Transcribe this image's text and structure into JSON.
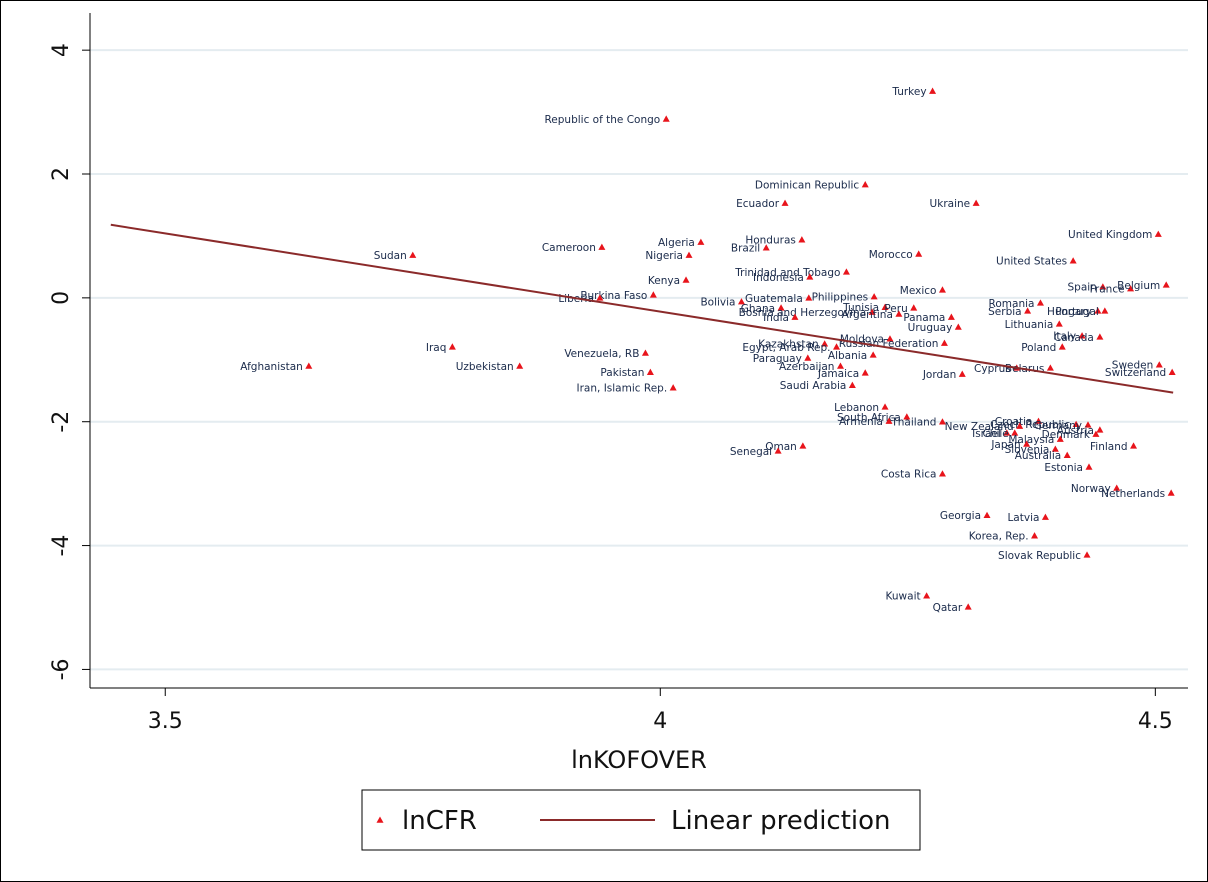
{
  "chart_data": {
    "type": "scatter",
    "x_label": "lnKOFOVER",
    "xlim": [
      3.424,
      4.533
    ],
    "xticks": [
      3.5,
      4,
      4.5
    ],
    "ylim": [
      -6.3,
      4.6
    ],
    "yticks": [
      -6,
      -4,
      -2,
      0,
      2,
      4
    ],
    "grid": true,
    "legend": "bottom",
    "series": [
      {
        "name": "lnCFR",
        "color": "#e8141b",
        "point_labels": [
          "Turkey",
          "Republic of the Congo",
          "Dominican Republic",
          "Ecuador",
          "Ukraine",
          "United Kingdom",
          "Sudan",
          "Cameroon",
          "Algeria",
          "Honduras",
          "Brazil",
          "Nigeria",
          "Morocco",
          "United States",
          "Kenya",
          "Trinidad and Tobago",
          "Indonesia",
          "Spain",
          "France",
          "Belgium",
          "Mexico",
          "Romania",
          "Burkina Faso",
          "Liberia",
          "Bolivia",
          "Guatemala",
          "Philippines",
          "Tunisia",
          "Peru",
          "Ghana",
          "Bosnia and Herzegovina",
          "India",
          "Argentina",
          "Panama",
          "Uruguay",
          "Serbia",
          "Hungary",
          "Portugal",
          "Lithuania",
          "Italy",
          "Canada",
          "Poland",
          "Moldova",
          "Kazakhstan",
          "Egypt, Arab Rep.",
          "Russian Federation",
          "Albania",
          "Venezuela, RB",
          "Iraq",
          "Paraguay",
          "Azerbaijan",
          "Afghanistan",
          "Uzbekistan",
          "Pakistan",
          "Jamaica",
          "Jordan",
          "Cyprus",
          "Belarus",
          "Sweden",
          "Switzerland",
          "Saudi Arabia",
          "Iran, Islamic Rep.",
          "Croatia",
          "Czech Republic",
          "Germany",
          "Denmark",
          "Austria",
          "Israel",
          "Chile",
          "Lebanon",
          "South Africa",
          "Armenia",
          "Thailand",
          "New Zealand",
          "Malaysia",
          "Japan",
          "Slovenia",
          "Australia",
          "Finland",
          "Oman",
          "Senegal",
          "Estonia",
          "Costa Rica",
          "Norway",
          "Netherlands",
          "Georgia",
          "Latvia",
          "Korea, Rep.",
          "Slovak Republic",
          "Kuwait",
          "Qatar"
        ],
        "x": [
          4.275,
          4.006,
          4.207,
          4.126,
          4.319,
          4.503,
          3.75,
          3.941,
          4.041,
          4.143,
          4.107,
          4.029,
          4.261,
          4.417,
          4.026,
          4.188,
          4.151,
          4.447,
          4.475,
          4.511,
          4.285,
          4.384,
          3.993,
          3.939,
          4.082,
          4.15,
          4.216,
          4.227,
          4.256,
          4.122,
          4.214,
          4.136,
          4.241,
          4.294,
          4.301,
          4.371,
          4.442,
          4.449,
          4.403,
          4.426,
          4.444,
          4.406,
          4.232,
          4.166,
          4.178,
          4.287,
          4.215,
          3.985,
          3.79,
          4.149,
          4.182,
          3.645,
          3.858,
          3.99,
          4.207,
          4.305,
          4.36,
          4.394,
          4.504,
          4.517,
          4.194,
          4.013,
          4.382,
          4.42,
          4.432,
          4.44,
          4.444,
          4.35,
          4.358,
          4.227,
          4.249,
          4.231,
          4.285,
          4.363,
          4.404,
          4.37,
          4.399,
          4.411,
          4.478,
          4.144,
          4.119,
          4.433,
          4.285,
          4.461,
          4.516,
          4.33,
          4.389,
          4.378,
          4.431,
          4.269,
          4.311
        ],
        "values": [
          3.34,
          2.89,
          1.83,
          1.53,
          1.53,
          1.03,
          0.69,
          0.82,
          0.9,
          0.94,
          0.81,
          0.69,
          0.71,
          0.6,
          0.29,
          0.42,
          0.34,
          0.18,
          0.15,
          0.21,
          0.13,
          -0.08,
          0.05,
          0,
          -0.06,
          0,
          0.02,
          -0.15,
          -0.16,
          -0.16,
          -0.23,
          -0.31,
          -0.26,
          -0.31,
          -0.47,
          -0.21,
          -0.21,
          -0.21,
          -0.42,
          -0.61,
          -0.63,
          -0.79,
          -0.66,
          -0.74,
          -0.79,
          -0.73,
          -0.92,
          -0.89,
          -0.79,
          -0.97,
          -1.1,
          -1.1,
          -1.1,
          -1.2,
          -1.21,
          -1.23,
          -1.13,
          -1.13,
          -1.08,
          -1.2,
          -1.41,
          -1.45,
          -1.99,
          -2.04,
          -2.05,
          -2.2,
          -2.13,
          -2.18,
          -2.18,
          -1.76,
          -1.92,
          -1.99,
          -2.0,
          -2.07,
          -2.28,
          -2.36,
          -2.44,
          -2.54,
          -2.39,
          -2.39,
          -2.47,
          -2.73,
          -2.84,
          -3.07,
          -3.15,
          -3.51,
          -3.54,
          -3.84,
          -4.15,
          -4.81,
          -4.99
        ]
      },
      {
        "name": "Linear prediction",
        "color": "#8b2a2a",
        "x": [
          3.445,
          4.518
        ],
        "values": [
          1.18,
          -1.53
        ]
      }
    ]
  }
}
